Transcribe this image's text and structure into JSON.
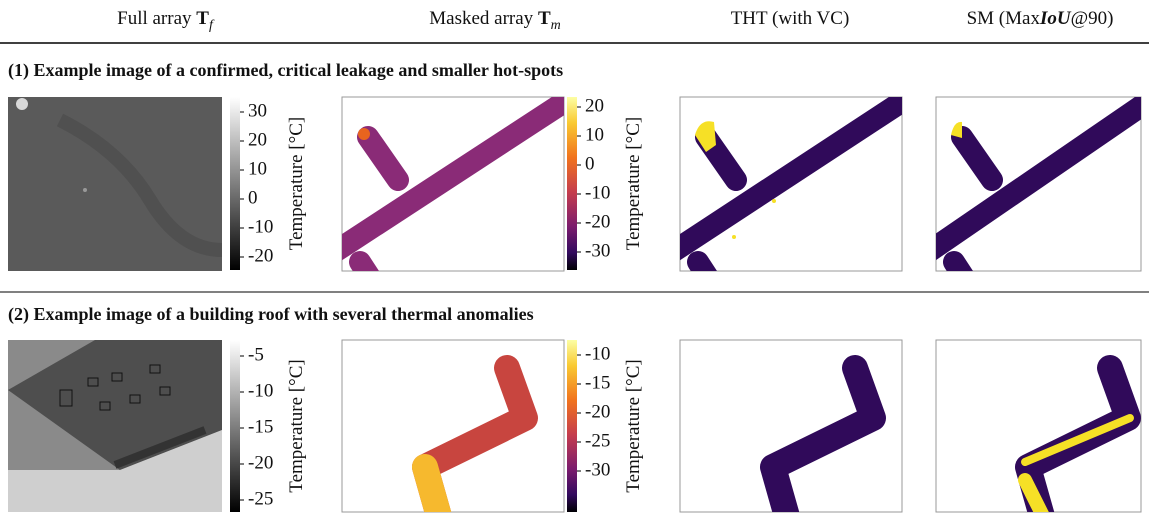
{
  "header": {
    "columns": [
      {
        "text": "Full array ",
        "symbol": "T",
        "sub": "f"
      },
      {
        "text": "Masked array ",
        "symbol": "T",
        "sub": "m"
      },
      {
        "text": "THT (with VC)"
      },
      {
        "text": "SM (Max",
        "italic": "IoU",
        "tail": "@90)"
      }
    ]
  },
  "rows": [
    {
      "caption": "(1) Example image of a confirmed, critical leakage and smaller hot-spots",
      "colorbars": [
        {
          "ticks": [
            30,
            20,
            10,
            0,
            -10,
            -20
          ],
          "label": "Temperature [°C]"
        },
        {
          "ticks": [
            20,
            10,
            0,
            -10,
            -20,
            -30
          ],
          "label": "Temperature [°C]"
        }
      ]
    },
    {
      "caption": "(2) Example image of a building roof with several thermal anomalies",
      "colorbars": [
        {
          "ticks": [
            -5,
            -10,
            -15,
            -20,
            -25
          ],
          "label": "Temperature [°C]"
        },
        {
          "ticks": [
            -10,
            -15,
            -20,
            -25,
            -30
          ],
          "label": "Temperature [°C]"
        }
      ]
    }
  ]
}
